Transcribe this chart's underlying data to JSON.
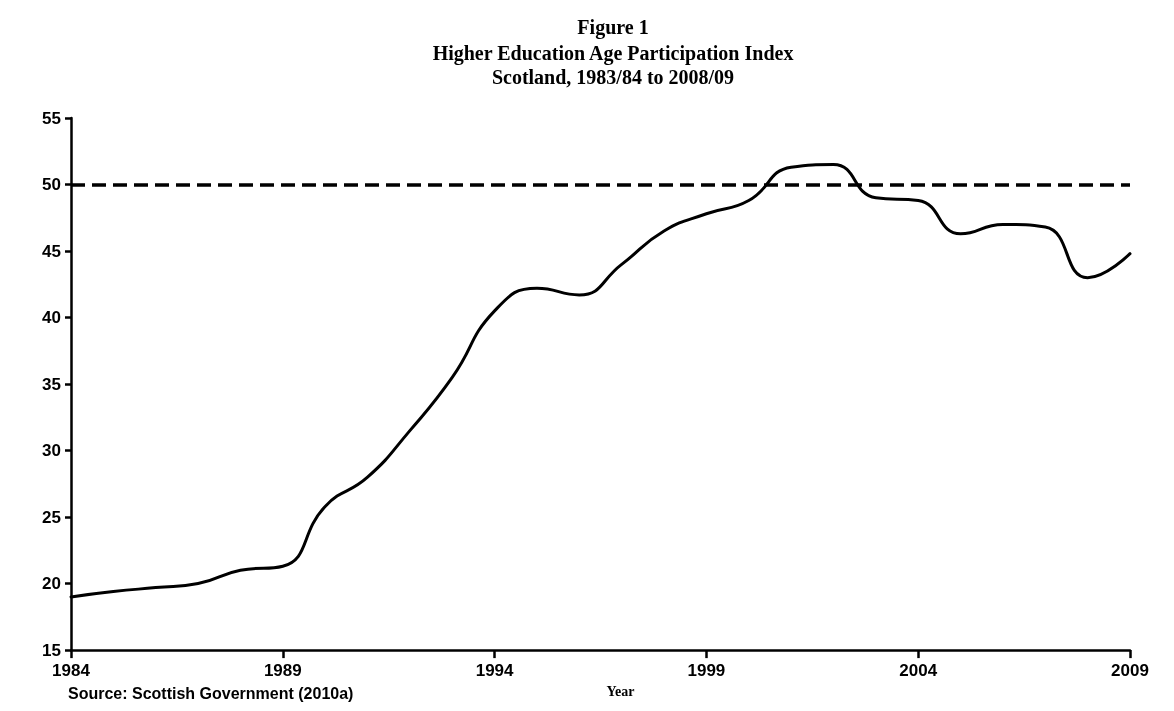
{
  "chart_data": {
    "type": "line",
    "title": "Figure 1",
    "subtitle": "Higher Education Age Participation Index\nScotland, 1983/84 to 2008/09",
    "xlabel": "Year",
    "x": [
      1984,
      1985,
      1986,
      1987,
      1988,
      1989,
      1990,
      1991,
      1992,
      1993,
      1994,
      1995,
      1996,
      1997,
      1998,
      1999,
      2000,
      2001,
      2002,
      2003,
      2004,
      2005,
      2006,
      2007,
      2008,
      2009
    ],
    "series": [
      {
        "color": "#000000",
        "values": [
          19.0,
          19.4,
          19.7,
          20.0,
          21.0,
          21.3,
          25.8,
          28.0,
          31.5,
          35.5,
          40.5,
          42.2,
          41.7,
          44.0,
          46.5,
          47.8,
          48.8,
          51.3,
          51.5,
          49.0,
          48.8,
          46.3,
          47.0,
          46.8,
          43.0,
          44.8
        ]
      }
    ],
    "xlim": [
      1984,
      2009
    ],
    "xticks": [
      1984,
      1989,
      1994,
      1999,
      2004,
      2009
    ],
    "ylim": [
      15,
      55
    ],
    "yticks": [
      15,
      20,
      25,
      30,
      35,
      40,
      45,
      50,
      55
    ],
    "ref_lines": [
      {
        "axis": "y",
        "value": 50,
        "color": "#000000",
        "line_style": "dashed"
      }
    ],
    "annotations": [
      "Source: Scottish Government (2010a)"
    ],
    "grid": false,
    "marker": "none",
    "line_style": "solid"
  }
}
